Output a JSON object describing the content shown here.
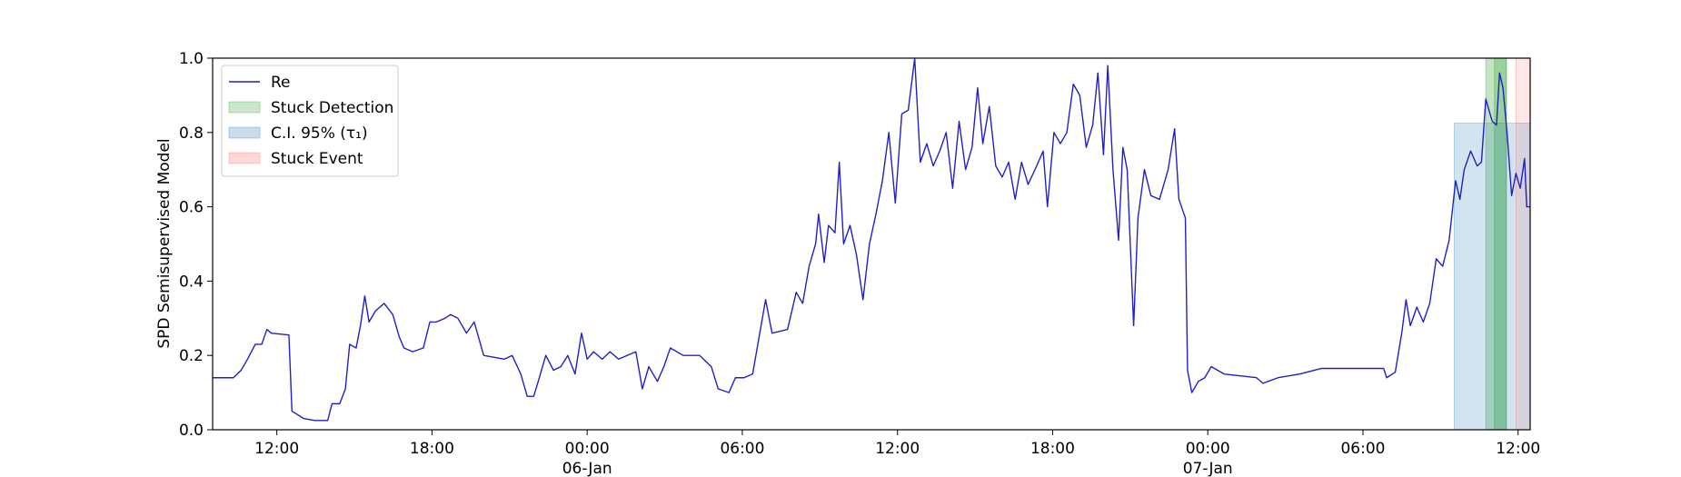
{
  "chart_data": {
    "type": "line",
    "ylabel": "SPD Semisupervised Model",
    "x": [
      "1999-01-05T09:31",
      "1999-01-05T10:19",
      "1999-01-05T10:37",
      "1999-01-05T10:52",
      "1999-01-05T11:10",
      "1999-01-05T11:25",
      "1999-01-05T11:37",
      "1999-01-05T11:47",
      "1999-01-05T12:28",
      "1999-01-05T12:35",
      "1999-01-05T13:03",
      "1999-01-05T13:28",
      "1999-01-05T13:58",
      "1999-01-05T14:08",
      "1999-01-05T14:26",
      "1999-01-05T14:39",
      "1999-01-05T14:49",
      "1999-01-05T15:04",
      "1999-01-05T15:14",
      "1999-01-05T15:24",
      "1999-01-05T15:34",
      "1999-01-05T15:49",
      "1999-01-05T16:09",
      "1999-01-05T16:29",
      "1999-01-05T16:44",
      "1999-01-05T16:55",
      "1999-01-05T17:15",
      "1999-01-05T17:40",
      "1999-01-05T17:55",
      "1999-01-05T18:10",
      "1999-01-05T18:30",
      "1999-01-05T18:43",
      "1999-01-05T19:00",
      "1999-01-05T19:20",
      "1999-01-05T19:38",
      "1999-01-05T20:00",
      "1999-01-05T20:48",
      "1999-01-05T21:06",
      "1999-01-05T21:26",
      "1999-01-05T21:41",
      "1999-01-05T21:56",
      "1999-01-05T22:09",
      "1999-01-05T22:24",
      "1999-01-05T22:42",
      "1999-01-05T22:59",
      "1999-01-05T23:15",
      "1999-01-05T23:32",
      "1999-01-05T23:47",
      "1999-01-06T00:00",
      "1999-01-06T00:15",
      "1999-01-06T00:35",
      "1999-01-06T00:53",
      "1999-01-06T01:13",
      "1999-01-06T01:53",
      "1999-01-06T02:08",
      "1999-01-06T02:23",
      "1999-01-06T02:43",
      "1999-01-06T02:58",
      "1999-01-06T03:13",
      "1999-01-06T03:43",
      "1999-01-06T04:21",
      "1999-01-06T04:48",
      "1999-01-06T05:04",
      "1999-01-06T05:29",
      "1999-01-06T05:44",
      "1999-01-06T06:04",
      "1999-01-06T06:24",
      "1999-01-06T06:39",
      "1999-01-06T06:54",
      "1999-01-06T07:09",
      "1999-01-06T07:45",
      "1999-01-06T08:05",
      "1999-01-06T08:20",
      "1999-01-06T08:35",
      "1999-01-06T08:50",
      "1999-01-06T08:57",
      "1999-01-06T09:10",
      "1999-01-06T09:20",
      "1999-01-06T09:35",
      "1999-01-06T09:45",
      "1999-01-06T09:55",
      "1999-01-06T10:10",
      "1999-01-06T10:25",
      "1999-01-06T10:40",
      "1999-01-06T10:55",
      "1999-01-06T11:10",
      "1999-01-06T11:25",
      "1999-01-06T11:40",
      "1999-01-06T11:55",
      "1999-01-06T12:10",
      "1999-01-06T12:25",
      "1999-01-06T12:40",
      "1999-01-06T12:53",
      "1999-01-06T13:08",
      "1999-01-06T13:23",
      "1999-01-06T13:38",
      "1999-01-06T13:53",
      "1999-01-06T14:08",
      "1999-01-06T14:23",
      "1999-01-06T14:38",
      "1999-01-06T14:53",
      "1999-01-06T15:06",
      "1999-01-06T15:18",
      "1999-01-06T15:33",
      "1999-01-06T15:48",
      "1999-01-06T16:03",
      "1999-01-06T16:18",
      "1999-01-06T16:33",
      "1999-01-06T16:48",
      "1999-01-06T17:03",
      "1999-01-06T17:23",
      "1999-01-06T17:38",
      "1999-01-06T17:48",
      "1999-01-06T18:03",
      "1999-01-06T18:18",
      "1999-01-06T18:33",
      "1999-01-06T18:48",
      "1999-01-06T19:03",
      "1999-01-06T19:18",
      "1999-01-06T19:33",
      "1999-01-06T19:45",
      "1999-01-06T19:58",
      "1999-01-06T20:08",
      "1999-01-06T20:20",
      "1999-01-06T20:33",
      "1999-01-06T20:43",
      "1999-01-06T20:53",
      "1999-01-06T21:08",
      "1999-01-06T21:18",
      "1999-01-06T21:33",
      "1999-01-06T21:48",
      "1999-01-06T22:08",
      "1999-01-06T22:28",
      "1999-01-06T22:43",
      "1999-01-06T22:53",
      "1999-01-06T23:08",
      "1999-01-06T23:13",
      "1999-01-06T23:23",
      "1999-01-06T23:38",
      "1999-01-06T23:53",
      "1999-01-07T00:08",
      "1999-01-07T00:38",
      "1999-01-07T01:53",
      "1999-01-07T02:08",
      "1999-01-07T02:43",
      "1999-01-07T03:33",
      "1999-01-07T04:23",
      "1999-01-07T05:13",
      "1999-01-07T06:48",
      "1999-01-07T06:55",
      "1999-01-07T07:15",
      "1999-01-07T07:30",
      "1999-01-07T07:40",
      "1999-01-07T07:50",
      "1999-01-07T08:05",
      "1999-01-07T08:20",
      "1999-01-07T08:35",
      "1999-01-07T08:50",
      "1999-01-07T09:05",
      "1999-01-07T09:20",
      "1999-01-07T09:35",
      "1999-01-07T09:45",
      "1999-01-07T09:55",
      "1999-01-07T10:10",
      "1999-01-07T10:25",
      "1999-01-07T10:35",
      "1999-01-07T10:45",
      "1999-01-07T11:00",
      "1999-01-07T11:10",
      "1999-01-07T11:17",
      "1999-01-07T11:25",
      "1999-01-07T11:35",
      "1999-01-07T11:45",
      "1999-01-07T11:55",
      "1999-01-07T12:05",
      "1999-01-07T12:15",
      "1999-01-07T12:20",
      "1999-01-07T12:28"
    ],
    "series": [
      {
        "name": "Re",
        "color": "#2020c8",
        "values": [
          0.14,
          0.14,
          0.16,
          0.19,
          0.23,
          0.23,
          0.27,
          0.26,
          0.255,
          0.05,
          0.03,
          0.025,
          0.025,
          0.07,
          0.07,
          0.11,
          0.23,
          0.22,
          0.28,
          0.36,
          0.29,
          0.32,
          0.34,
          0.31,
          0.25,
          0.22,
          0.21,
          0.22,
          0.29,
          0.29,
          0.3,
          0.31,
          0.3,
          0.26,
          0.29,
          0.2,
          0.19,
          0.2,
          0.15,
          0.09,
          0.09,
          0.14,
          0.2,
          0.16,
          0.17,
          0.2,
          0.15,
          0.26,
          0.19,
          0.21,
          0.19,
          0.21,
          0.19,
          0.21,
          0.11,
          0.17,
          0.13,
          0.17,
          0.22,
          0.2,
          0.2,
          0.17,
          0.11,
          0.1,
          0.14,
          0.14,
          0.15,
          0.25,
          0.35,
          0.26,
          0.27,
          0.37,
          0.34,
          0.44,
          0.5,
          0.58,
          0.45,
          0.55,
          0.53,
          0.72,
          0.5,
          0.55,
          0.47,
          0.35,
          0.5,
          0.58,
          0.67,
          0.8,
          0.61,
          0.85,
          0.86,
          1.0,
          0.72,
          0.77,
          0.71,
          0.75,
          0.8,
          0.65,
          0.83,
          0.7,
          0.76,
          0.92,
          0.77,
          0.87,
          0.71,
          0.68,
          0.72,
          0.62,
          0.72,
          0.66,
          0.71,
          0.75,
          0.6,
          0.8,
          0.77,
          0.8,
          0.93,
          0.9,
          0.76,
          0.82,
          0.96,
          0.74,
          0.98,
          0.7,
          0.51,
          0.76,
          0.7,
          0.28,
          0.57,
          0.7,
          0.63,
          0.62,
          0.7,
          0.81,
          0.62,
          0.57,
          0.16,
          0.1,
          0.13,
          0.14,
          0.17,
          0.15,
          0.14,
          0.125,
          0.14,
          0.15,
          0.165,
          0.165,
          0.165,
          0.14,
          0.155,
          0.26,
          0.35,
          0.28,
          0.33,
          0.29,
          0.34,
          0.46,
          0.44,
          0.51,
          0.67,
          0.62,
          0.7,
          0.75,
          0.71,
          0.72,
          0.89,
          0.83,
          0.82,
          0.96,
          0.92,
          0.79,
          0.63,
          0.69,
          0.65,
          0.73,
          0.6,
          0.6
        ]
      }
    ],
    "bands": [
      {
        "name": "Stuck Detection",
        "color": "#2ca02c",
        "spans": [
          {
            "x": [
              "1999-01-07T10:45",
              "1999-01-07T11:33"
            ],
            "ytop": 1.0
          },
          {
            "x": [
              "1999-01-07T11:05",
              "1999-01-07T11:33"
            ],
            "ytop": 1.0
          }
        ]
      },
      {
        "name": "C.I. 95% (τ₁)",
        "color": "#1f77b4",
        "spans": [
          {
            "x": [
              "1999-01-07T09:32",
              "1999-01-07T12:28"
            ],
            "ytop": 0.825
          }
        ]
      },
      {
        "name": "Stuck Event",
        "color": "#ff6060",
        "spans": [
          {
            "x": [
              "1999-01-07T11:55",
              "1999-01-07T12:28"
            ],
            "ytop": 1.0
          }
        ]
      }
    ],
    "xlim": [
      "1999-01-05T09:31",
      "1999-01-07T12:28"
    ],
    "xticks": [
      {
        "value": "1999-01-05T12:00",
        "label": "12:00"
      },
      {
        "value": "1999-01-05T18:00",
        "label": "18:00"
      },
      {
        "value": "1999-01-06T00:00",
        "label": "00:00\n06-Jan\n1999"
      },
      {
        "value": "1999-01-06T06:00",
        "label": "06:00"
      },
      {
        "value": "1999-01-06T12:00",
        "label": "12:00"
      },
      {
        "value": "1999-01-06T18:00",
        "label": "18:00"
      },
      {
        "value": "1999-01-07T00:00",
        "label": "00:00\n07-Jan"
      },
      {
        "value": "1999-01-07T06:00",
        "label": "06:00"
      },
      {
        "value": "1999-01-07T12:00",
        "label": "12:00"
      }
    ],
    "ylim": [
      0.0,
      1.0
    ],
    "yticks": [
      {
        "value": 0,
        "label": "0.0"
      },
      {
        "value": 0.2,
        "label": "0.2"
      },
      {
        "value": 0.4,
        "label": "0.4"
      },
      {
        "value": 0.6,
        "label": "0.6"
      },
      {
        "value": 0.8,
        "label": "0.8"
      },
      {
        "value": 1,
        "label": "1.0"
      }
    ],
    "legend": "upper left"
  }
}
